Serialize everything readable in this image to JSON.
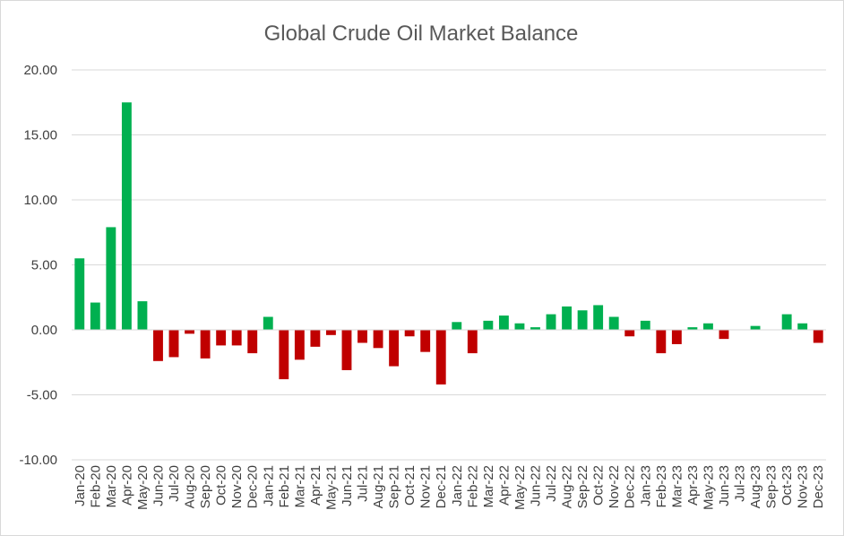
{
  "chart_data": {
    "type": "bar",
    "title": "Global Crude Oil Market Balance",
    "xlabel": "",
    "ylabel": "",
    "ylim": [
      -10,
      20
    ],
    "yticks": [
      20,
      15,
      10,
      5,
      0,
      -5,
      -10
    ],
    "ytick_labels": [
      "20.00",
      "15.00",
      "10.00",
      "5.00",
      "0.00",
      "-5.00",
      "-10.00"
    ],
    "grid": true,
    "legend": "none",
    "positive_color": "#00b050",
    "negative_color": "#c00000",
    "categories": [
      "Jan-20",
      "Feb-20",
      "Mar-20",
      "Apr-20",
      "May-20",
      "Jun-20",
      "Jul-20",
      "Aug-20",
      "Sep-20",
      "Oct-20",
      "Nov-20",
      "Dec-20",
      "Jan-21",
      "Feb-21",
      "Mar-21",
      "Apr-21",
      "May-21",
      "Jun-21",
      "Jul-21",
      "Aug-21",
      "Sep-21",
      "Oct-21",
      "Nov-21",
      "Dec-21",
      "Jan-22",
      "Feb-22",
      "Mar-22",
      "Apr-22",
      "May-22",
      "Jun-22",
      "Jul-22",
      "Aug-22",
      "Sep-22",
      "Oct-22",
      "Nov-22",
      "Dec-22",
      "Jan-23",
      "Feb-23",
      "Mar-23",
      "Apr-23",
      "May-23",
      "Jun-23",
      "Jul-23",
      "Aug-23",
      "Sep-23",
      "Oct-23",
      "Nov-23",
      "Dec-23"
    ],
    "values": [
      5.5,
      2.1,
      7.9,
      17.5,
      2.2,
      -2.4,
      -2.1,
      -0.3,
      -2.2,
      -1.2,
      -1.2,
      -1.8,
      1.0,
      -3.8,
      -2.3,
      -1.3,
      -0.4,
      -3.1,
      -1.0,
      -1.4,
      -2.8,
      -0.5,
      -1.7,
      -4.2,
      0.6,
      -1.8,
      0.7,
      1.1,
      0.5,
      0.2,
      1.2,
      1.8,
      1.5,
      1.9,
      1.0,
      -0.5,
      0.7,
      -1.8,
      -1.1,
      0.2,
      0.5,
      -0.7,
      0.0,
      0.3,
      0.0,
      1.2,
      0.5,
      -1.0
    ]
  }
}
